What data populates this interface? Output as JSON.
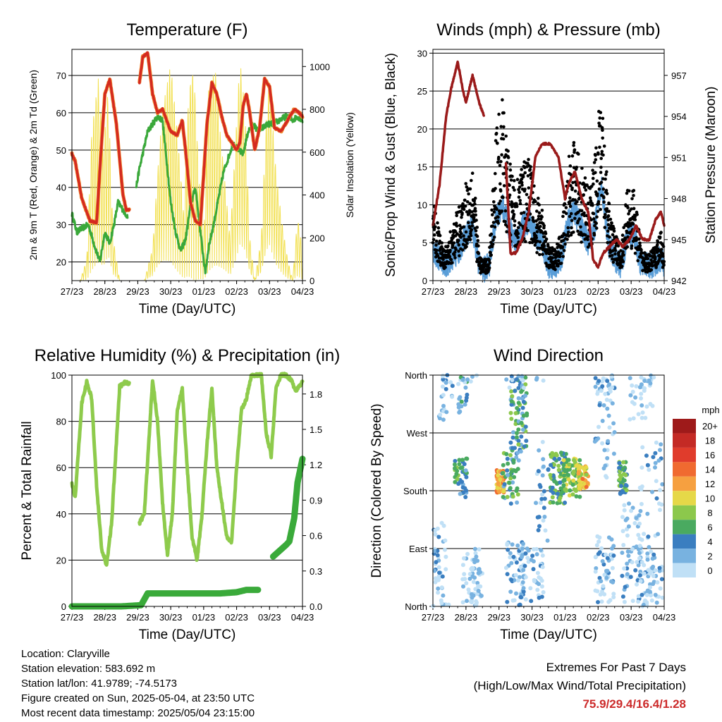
{
  "chart_data": [
    {
      "type": "line",
      "title": "Temperature (F)",
      "xlabel": "Time (Day/UTC)",
      "ylabel": "2m & 9m T (Red, Orange) & 2m Td (Green)",
      "y2label": "Solar Insolation (Yellow)",
      "x_ticks": [
        "27/23",
        "28/23",
        "29/23",
        "30/23",
        "01/23",
        "02/23",
        "03/23",
        "04/23"
      ],
      "y_ticks": [
        20,
        30,
        40,
        50,
        60,
        70
      ],
      "y2_ticks": [
        0,
        200,
        400,
        600,
        800,
        1000
      ],
      "ylim": [
        15,
        77
      ],
      "y2lim": [
        0,
        1080
      ],
      "colors": {
        "t2m": "#d42a20",
        "t9m": "#f08a30",
        "td": "#3aa83a",
        "solar": "#f2e050"
      },
      "series": [
        {
          "name": "2m T",
          "x": [
            0,
            0.1,
            0.3,
            0.55,
            0.75,
            0.85,
            1.0,
            1.15,
            1.35,
            1.55,
            1.65,
            1.75,
            1.95,
            2.05,
            2.15,
            2.3,
            2.45,
            2.6,
            2.75,
            3.0,
            3.2,
            3.35,
            3.45,
            3.6,
            3.75,
            3.9,
            4.1,
            4.25,
            4.4,
            4.55,
            4.7,
            4.85,
            5.0,
            5.1,
            5.2,
            5.3,
            5.4,
            5.55,
            5.7,
            5.85,
            6.0,
            6.15,
            6.35,
            6.55,
            6.75,
            6.9,
            7.0
          ],
          "values": [
            49,
            47,
            37,
            31,
            30.5,
            45,
            65,
            69,
            57,
            38,
            34,
            34,
            null,
            68,
            75,
            76,
            65,
            60,
            61,
            55,
            54,
            58,
            50,
            36,
            31,
            30,
            57,
            68,
            65,
            59,
            54,
            52,
            50,
            52,
            62,
            65,
            60,
            50,
            56,
            69,
            67,
            56,
            55,
            58,
            61,
            60,
            59
          ]
        },
        {
          "name": "2m Td",
          "x": [
            0,
            0.15,
            0.3,
            0.5,
            0.7,
            0.85,
            1.0,
            1.15,
            1.3,
            1.4,
            1.55,
            1.7,
            1.8,
            1.95,
            2.05,
            2.15,
            2.3,
            2.45,
            2.6,
            2.75,
            2.9,
            3.0,
            3.15,
            3.3,
            3.45,
            3.6,
            3.75,
            3.9,
            4.05,
            4.15,
            4.3,
            4.45,
            4.6,
            4.75,
            4.9,
            5.05,
            5.2,
            5.35,
            5.5,
            5.65,
            5.8,
            5.95,
            6.1,
            6.3,
            6.5,
            6.7,
            6.85,
            7.0
          ],
          "values": [
            33,
            28,
            29,
            30,
            24,
            20,
            28,
            25,
            31,
            36,
            34,
            32,
            null,
            40,
            45,
            49,
            55,
            57,
            59,
            58,
            45,
            36,
            28,
            23,
            26,
            35,
            40,
            28,
            17,
            24,
            30,
            37,
            44,
            48,
            52,
            50,
            49,
            55,
            57,
            55,
            56,
            57,
            57,
            58,
            59,
            58,
            59,
            58
          ]
        },
        {
          "name": "Solar Insolation",
          "axis": "y2",
          "x": [
            0,
            0.25,
            0.45,
            0.6,
            0.8,
            0.95,
            1.1,
            1.25,
            1.45,
            1.6,
            1.75,
            2.0,
            2.2,
            2.45,
            2.6,
            2.75,
            3.0,
            3.2,
            3.4,
            3.55,
            3.7,
            3.85,
            4.0,
            4.15,
            4.35,
            4.5,
            4.65,
            4.8,
            4.95,
            5.1,
            5.25,
            5.4,
            5.55,
            5.75,
            5.9,
            6.0,
            6.2,
            6.4,
            6.55,
            6.7,
            6.85,
            6.95,
            7.0
          ],
          "values": [
            0,
            0,
            100,
            700,
            950,
            600,
            900,
            200,
            0,
            0,
            0,
            0,
            0,
            150,
            500,
            800,
            1020,
            700,
            300,
            900,
            1000,
            500,
            200,
            900,
            1000,
            700,
            450,
            200,
            600,
            1040,
            800,
            200,
            0,
            200,
            750,
            950,
            500,
            250,
            100,
            0,
            300,
            200,
            80
          ]
        }
      ]
    },
    {
      "type": "line",
      "title": "Winds (mph) & Pressure (mb)",
      "xlabel": "Time (Day/UTC)",
      "ylabel": "Sonic/Prop Wind & Gust (Blue, Black)",
      "y2label": "Station Pressure (Maroon)",
      "x_ticks": [
        "27/23",
        "28/23",
        "29/23",
        "30/23",
        "01/23",
        "02/23",
        "03/23",
        "04/23"
      ],
      "y_ticks": [
        0,
        5,
        10,
        15,
        20,
        25,
        30
      ],
      "y2_ticks": [
        942,
        945,
        948,
        951,
        954,
        957
      ],
      "ylim": [
        0,
        30.5
      ],
      "y2lim": [
        942,
        958.9
      ],
      "colors": {
        "wind": "#5a9ed8",
        "gust": "#000000",
        "pressure": "#9a1a1a"
      },
      "series": [
        {
          "name": "Sonic/Prop Wind",
          "x": [
            0,
            0.2,
            0.4,
            0.6,
            0.8,
            1.0,
            1.2,
            1.4,
            1.55,
            1.7,
            1.9,
            2.1,
            2.3,
            2.5,
            2.7,
            2.9,
            3.1,
            3.3,
            3.5,
            3.7,
            3.9,
            4.1,
            4.3,
            4.5,
            4.7,
            4.9,
            5.1,
            5.3,
            5.5,
            5.7,
            5.9,
            6.1,
            6.3,
            6.5,
            6.7,
            6.9,
            7.0
          ],
          "values": [
            4,
            3,
            2,
            3,
            4,
            6,
            7,
            2,
            1.5,
            2,
            8,
            10,
            7,
            5,
            7,
            8,
            6,
            5,
            2,
            2,
            3,
            8,
            9,
            7,
            5,
            7,
            13,
            5,
            3,
            2,
            6,
            6,
            2,
            2,
            2,
            3,
            2
          ]
        },
        {
          "name": "Gust",
          "x": [
            0,
            0.2,
            0.4,
            0.6,
            0.8,
            1.0,
            1.2,
            1.4,
            1.55,
            1.7,
            1.9,
            2.1,
            2.3,
            2.5,
            2.7,
            2.9,
            3.1,
            3.3,
            3.5,
            3.7,
            3.9,
            4.1,
            4.3,
            4.5,
            4.7,
            4.9,
            5.1,
            5.3,
            5.5,
            5.7,
            5.9,
            6.1,
            6.3,
            6.5,
            6.7,
            6.9,
            7.0
          ],
          "values": [
            10,
            6,
            4,
            7,
            9,
            12,
            15,
            3,
            2.5,
            3,
            18,
            22,
            15,
            12,
            14,
            15,
            11,
            9,
            4,
            4,
            6,
            16,
            17,
            14,
            11,
            15,
            24,
            10,
            6,
            4,
            12,
            11,
            4,
            3,
            4,
            6,
            4
          ]
        },
        {
          "name": "Station Pressure",
          "axis": "y2",
          "x": [
            0,
            0.2,
            0.4,
            0.55,
            0.75,
            0.9,
            1.0,
            1.1,
            1.2,
            1.4,
            1.55,
            2.05,
            2.2,
            2.35,
            2.5,
            2.7,
            2.9,
            3.1,
            3.3,
            3.55,
            3.8,
            4.0,
            4.1,
            4.3,
            4.5,
            4.7,
            4.85,
            5.0,
            5.15,
            5.35,
            5.55,
            5.75,
            5.95,
            6.15,
            6.35,
            6.55,
            6.75,
            6.9,
            7.0
          ],
          "values": [
            946,
            949,
            954,
            956,
            958,
            956,
            955,
            956,
            957,
            955,
            954,
            null,
            951,
            944,
            944,
            945,
            947,
            951,
            952,
            952,
            951,
            948,
            949,
            950,
            948,
            947,
            943.5,
            943,
            944,
            944.5,
            945,
            944.5,
            945,
            946,
            945,
            945,
            946.5,
            947,
            946
          ]
        }
      ]
    },
    {
      "type": "line",
      "title": "Relative Humidity (%) & Precipitation (in)",
      "xlabel": "Time (Day/UTC)",
      "ylabel": "Percent & Total Rainfall",
      "x_ticks": [
        "27/23",
        "28/23",
        "29/23",
        "30/23",
        "01/23",
        "02/23",
        "03/23",
        "04/23"
      ],
      "y_ticks": [
        0,
        20,
        40,
        60,
        80,
        100
      ],
      "y2_ticks": [
        "0.0",
        "0.3",
        "0.6",
        "0.9",
        "1.2",
        "1.5",
        "1.8"
      ],
      "ylim": [
        0,
        100
      ],
      "y2lim": [
        0,
        1.96
      ],
      "colors": {
        "rh": "#8ecb4c",
        "precip": "#3aaa3a"
      },
      "series": [
        {
          "name": "Relative Humidity",
          "x": [
            0,
            0.1,
            0.3,
            0.45,
            0.6,
            0.75,
            0.9,
            1.05,
            1.2,
            1.45,
            1.6,
            1.75,
            null,
            2.05,
            2.2,
            2.45,
            2.6,
            2.75,
            2.9,
            3.05,
            3.2,
            3.35,
            3.5,
            3.65,
            3.8,
            3.95,
            4.1,
            4.25,
            4.4,
            4.55,
            4.7,
            4.85,
            5.0,
            5.15,
            5.3,
            5.45,
            5.6,
            5.75,
            5.9,
            6.05,
            6.2,
            6.35,
            6.5,
            6.65,
            6.8,
            6.95,
            7.0
          ],
          "values": [
            53,
            47,
            88,
            97,
            90,
            52,
            25,
            18,
            35,
            95,
            97,
            96,
            null,
            36,
            40,
            98,
            80,
            45,
            22,
            40,
            85,
            94,
            60,
            30,
            20,
            40,
            70,
            94,
            60,
            45,
            30,
            28,
            60,
            85,
            90,
            100,
            100,
            100,
            75,
            65,
            95,
            100,
            100,
            98,
            93,
            96,
            97
          ]
        },
        {
          "name": "Total Precipitation",
          "axis": "y2",
          "x": [
            0,
            1.5,
            2.1,
            2.3,
            3.5,
            4.5,
            5.0,
            5.3,
            5.65,
            5.7,
            6.1,
            6.3,
            6.5,
            6.6,
            6.75,
            6.85,
            7.0
          ],
          "values": [
            0,
            0,
            0.01,
            0.11,
            0.11,
            0.11,
            0.12,
            0.14,
            0.14,
            null,
            0.42,
            0.47,
            0.52,
            0.55,
            0.75,
            1.05,
            1.25
          ]
        }
      ]
    },
    {
      "type": "scatter",
      "title": "Wind Direction",
      "xlabel": "Time (Day/UTC)",
      "ylabel": "Direction (Colored By Speed)",
      "x_ticks": [
        "27/23",
        "28/23",
        "29/23",
        "30/23",
        "01/23",
        "02/23",
        "03/23",
        "04/23"
      ],
      "y_ticks": [
        "North",
        "East",
        "South",
        "West",
        "North"
      ],
      "colorbar_title": "mph",
      "colorbar_labels": [
        "20+",
        "18",
        "16",
        "14",
        "12",
        "10",
        "8",
        "6",
        "4",
        "2",
        "0"
      ],
      "colorbar_colors": [
        "#9e1a1a",
        "#c42a25",
        "#e03c2c",
        "#f06a30",
        "#f6a040",
        "#e6d848",
        "#8cc84c",
        "#4aaa60",
        "#3a7ec0",
        "#78b2e0",
        "#c0e0f6"
      ]
    }
  ],
  "info": {
    "location": "Location: Claryville",
    "elevation": "Station elevation: 583.692 m",
    "latlon": "Station lat/lon: 41.9789; -74.5173",
    "created": "Figure created on Sun, 2025-05-04, at 23:50 UTC",
    "recent": "Most recent data timestamp: 2025/05/04 23:15:00"
  },
  "extremes": {
    "line1": "Extremes For Past 7 Days",
    "line2": "(High/Low/Max Wind/Total Precipitation)",
    "values": "75.9/29.4/16.4/1.28"
  }
}
